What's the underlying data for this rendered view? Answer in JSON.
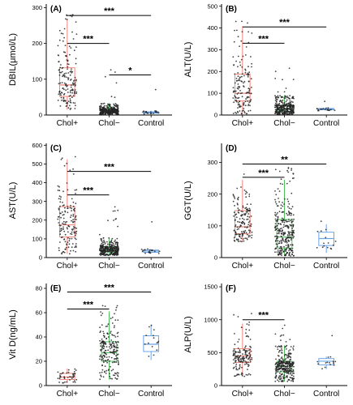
{
  "figure": {
    "categories": [
      "Chol+",
      "Chol−",
      "Control"
    ],
    "colors": {
      "Chol+": "#f2867b",
      "Chol−": "#4fbf5c",
      "Control": "#6aa5e8",
      "points": "#222222",
      "sig": "#000000"
    }
  },
  "chart_data": [
    {
      "type": "box",
      "panel": "(A)",
      "ylabel": "DBIL(μmol/L)",
      "ylim": [
        0,
        310
      ],
      "yticks": [
        0,
        100,
        200,
        300
      ],
      "categories": [
        "Chol+",
        "Chol−",
        "Control"
      ],
      "boxes": [
        {
          "category": "Chol+",
          "whisker_low": 15,
          "q1": 52,
          "median": 84,
          "q3": 132,
          "whisker_high": 268,
          "n": 160
        },
        {
          "category": "Chol−",
          "whisker_low": 2,
          "q1": 7,
          "median": 11,
          "q3": 17,
          "whisker_high": 33,
          "n": 300
        },
        {
          "category": "Control",
          "whisker_low": 3,
          "q1": 5,
          "median": 7,
          "q3": 9,
          "whisker_high": 12,
          "n": 20
        }
      ],
      "significance": [
        {
          "pair": [
            "Chol+",
            "Chol−"
          ],
          "label": "***",
          "y": 200
        },
        {
          "pair": [
            "Chol+",
            "Control"
          ],
          "label": "***",
          "y": 278
        },
        {
          "pair": [
            "Chol−",
            "Control"
          ],
          "label": "*",
          "y": 112
        }
      ]
    },
    {
      "type": "box",
      "panel": "(B)",
      "ylabel": "ALT(U/L)",
      "ylim": [
        0,
        510
      ],
      "yticks": [
        0,
        100,
        200,
        300,
        400,
        500
      ],
      "categories": [
        "Chol+",
        "Chol−",
        "Control"
      ],
      "boxes": [
        {
          "category": "Chol+",
          "whisker_low": 5,
          "q1": 65,
          "median": 100,
          "q3": 188,
          "whisker_high": 408,
          "n": 150
        },
        {
          "category": "Chol−",
          "whisker_low": 3,
          "q1": 17,
          "median": 28,
          "q3": 45,
          "whisker_high": 90,
          "n": 300
        },
        {
          "category": "Control",
          "whisker_low": 20,
          "q1": 24,
          "median": 27,
          "q3": 30,
          "whisker_high": 34,
          "n": 20
        }
      ],
      "significance": [
        {
          "pair": [
            "Chol+",
            "Chol−"
          ],
          "label": "***",
          "y": 330
        },
        {
          "pair": [
            "Chol+",
            "Control"
          ],
          "label": "***",
          "y": 405
        }
      ]
    },
    {
      "type": "box",
      "panel": "(C)",
      "ylabel": "AST(U/L)",
      "ylim": [
        0,
        610
      ],
      "yticks": [
        0,
        100,
        200,
        300,
        400,
        500,
        600
      ],
      "categories": [
        "Chol+",
        "Chol−",
        "Control"
      ],
      "boxes": [
        {
          "category": "Chol+",
          "whisker_low": 20,
          "q1": 110,
          "median": 175,
          "q3": 272,
          "whisker_high": 525,
          "n": 150
        },
        {
          "category": "Chol−",
          "whisker_low": 12,
          "q1": 30,
          "median": 40,
          "q3": 58,
          "whisker_high": 105,
          "n": 300
        },
        {
          "category": "Control",
          "whisker_low": 22,
          "q1": 28,
          "median": 35,
          "q3": 40,
          "whisker_high": 46,
          "n": 20
        }
      ],
      "significance": [
        {
          "pair": [
            "Chol+",
            "Chol−"
          ],
          "label": "***",
          "y": 335
        },
        {
          "pair": [
            "Chol+",
            "Control"
          ],
          "label": "***",
          "y": 460
        }
      ]
    },
    {
      "type": "box",
      "panel": "(D)",
      "ylabel": "GGT(U/L)",
      "ylim": [
        0,
        360
      ],
      "yticks": [
        0,
        100,
        200,
        300
      ],
      "categories": [
        "Chol+",
        "Chol−",
        "Control"
      ],
      "boxes": [
        {
          "category": "Chol+",
          "whisker_low": 50,
          "q1": 75,
          "median": 97,
          "q3": 148,
          "whisker_high": 245,
          "n": 150
        },
        {
          "category": "Chol−",
          "whisker_low": 5,
          "q1": 30,
          "median": 65,
          "q3": 120,
          "whisker_high": 245,
          "n": 300
        },
        {
          "category": "Control",
          "whisker_low": 15,
          "q1": 38,
          "median": 60,
          "q3": 80,
          "whisker_high": 105,
          "n": 15
        }
      ],
      "significance": [
        {
          "pair": [
            "Chol+",
            "Chol−"
          ],
          "label": "***",
          "y": 253
        },
        {
          "pair": [
            "Chol+",
            "Control"
          ],
          "label": "**",
          "y": 295
        }
      ]
    },
    {
      "type": "box",
      "panel": "(E)",
      "ylabel": "Vit D(ng/mL)",
      "ylim": [
        0,
        84
      ],
      "yticks": [
        0,
        20,
        40,
        60,
        80
      ],
      "categories": [
        "Chol+",
        "Chol−",
        "Control"
      ],
      "boxes": [
        {
          "category": "Chol+",
          "whisker_low": 2,
          "q1": 5,
          "median": 7,
          "q3": 10,
          "whisker_high": 14,
          "n": 40
        },
        {
          "category": "Chol−",
          "whisker_low": 5,
          "q1": 20,
          "median": 27,
          "q3": 36,
          "whisker_high": 61,
          "n": 200
        },
        {
          "category": "Control",
          "whisker_low": 21,
          "q1": 28,
          "median": 34,
          "q3": 41,
          "whisker_high": 50,
          "n": 15
        }
      ],
      "significance": [
        {
          "pair": [
            "Chol+",
            "Chol−"
          ],
          "label": "***",
          "y": 63
        },
        {
          "pair": [
            "Chol+",
            "Control"
          ],
          "label": "***",
          "y": 77
        }
      ]
    },
    {
      "type": "box",
      "panel": "(F)",
      "ylabel": "ALP(U/L)",
      "ylim": [
        0,
        1550
      ],
      "yticks": [
        0,
        500,
        1000,
        1500
      ],
      "categories": [
        "Chol+",
        "Chol−",
        "Control"
      ],
      "boxes": [
        {
          "category": "Chol+",
          "whisker_low": 140,
          "q1": 350,
          "median": 450,
          "q3": 560,
          "whisker_high": 940,
          "n": 150
        },
        {
          "category": "Chol−",
          "whisker_low": 60,
          "q1": 210,
          "median": 290,
          "q3": 370,
          "whisker_high": 610,
          "n": 300
        },
        {
          "category": "Control",
          "whisker_low": 250,
          "q1": 315,
          "median": 370,
          "q3": 410,
          "whisker_high": 440,
          "n": 15
        }
      ],
      "significance": [
        {
          "pair": [
            "Chol+",
            "Chol−"
          ],
          "label": "***",
          "y": 1000
        }
      ]
    }
  ]
}
